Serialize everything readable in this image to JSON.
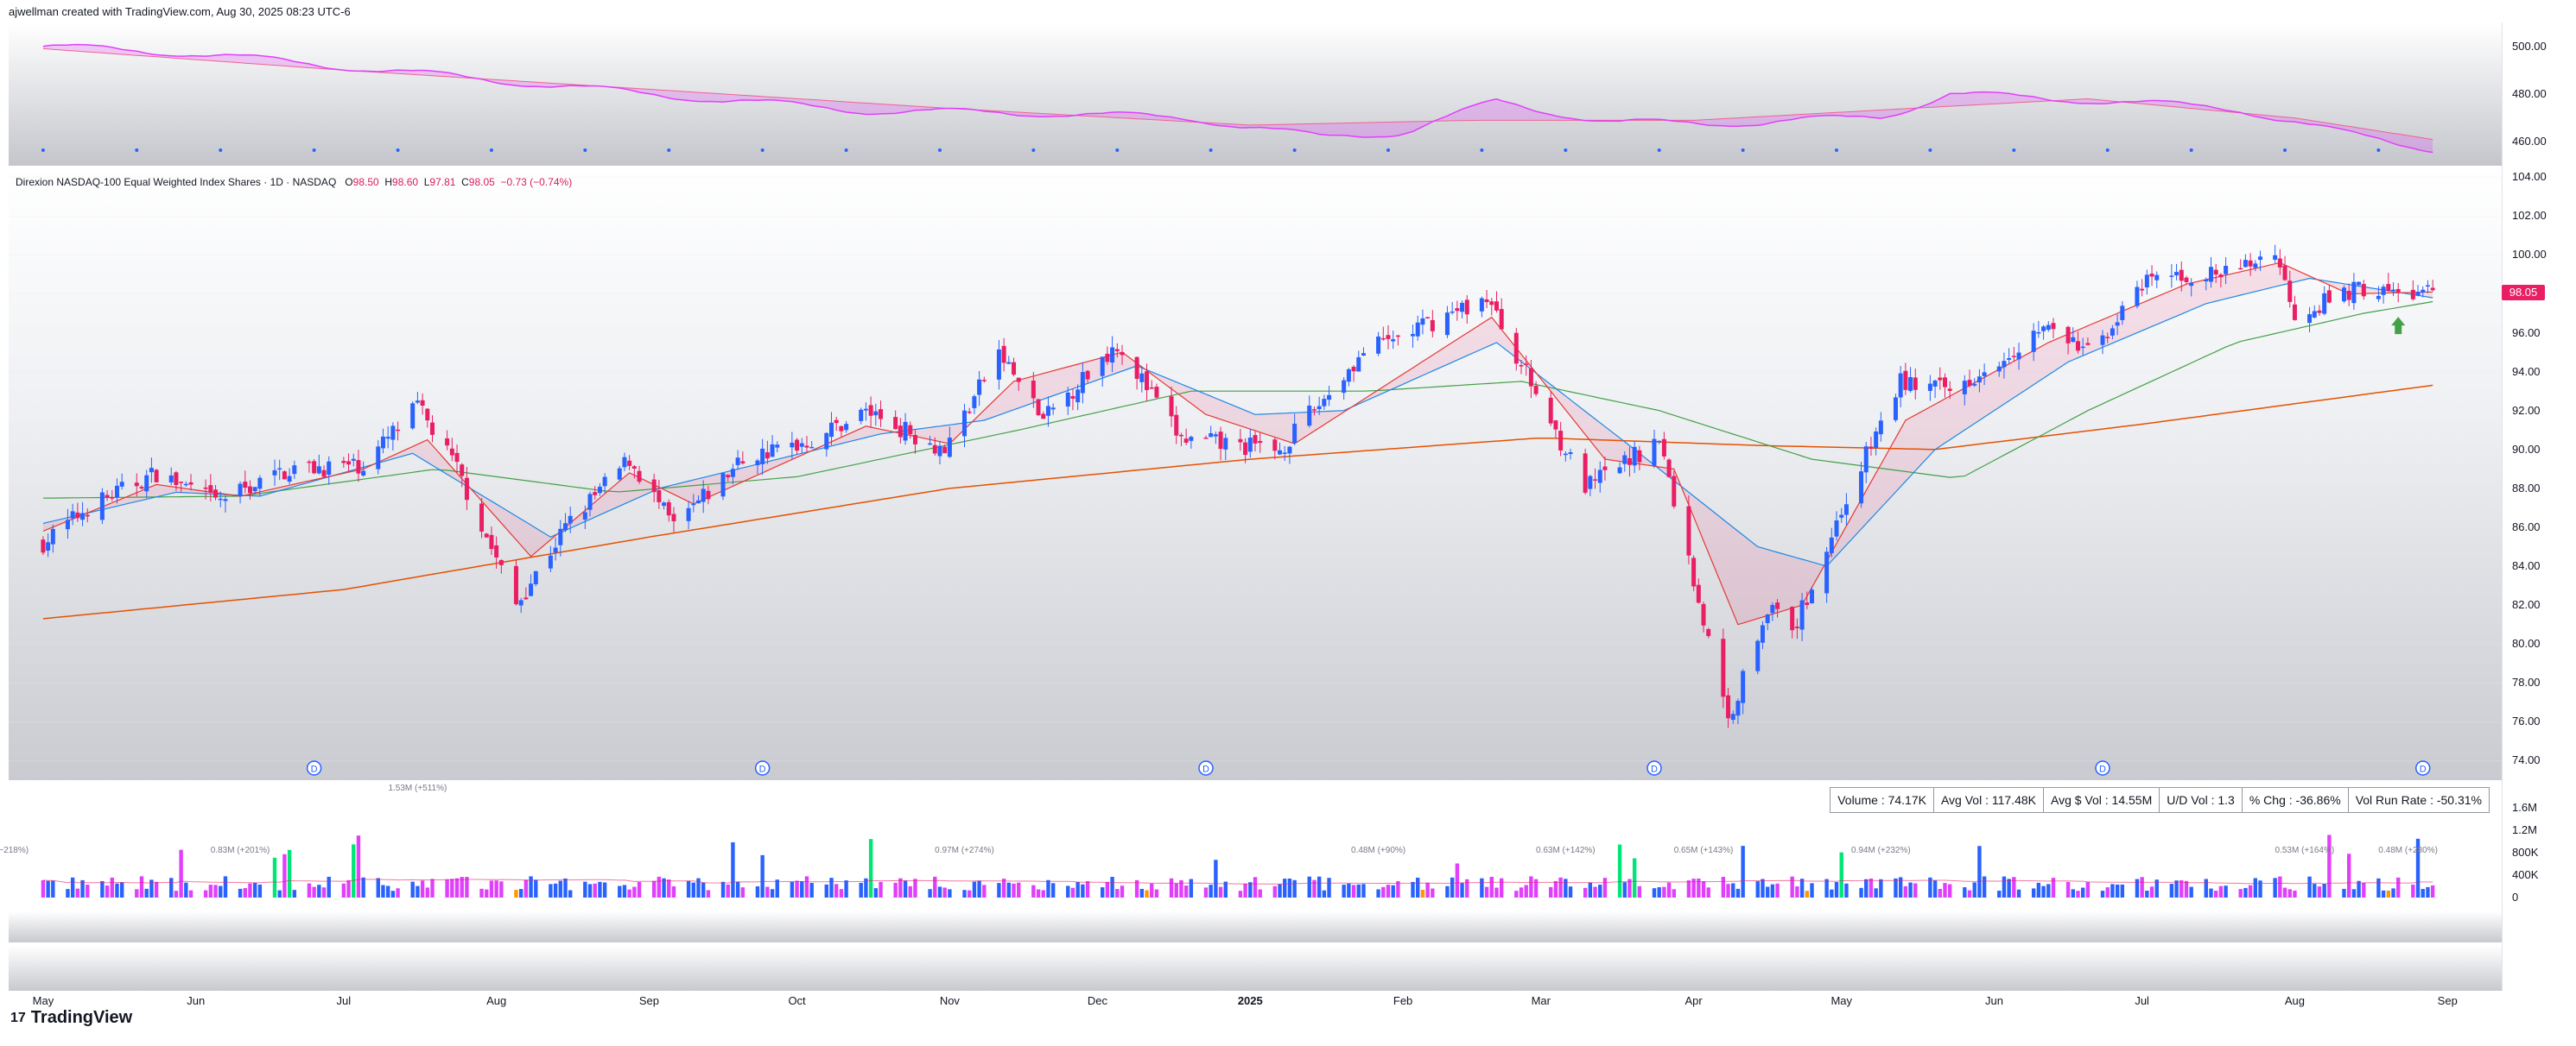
{
  "header": {
    "text": "ajwellman created with TradingView.com, Aug 30, 2025 08:23 UTC-6"
  },
  "legend": {
    "name": "Direxion NASDAQ-100 Equal Weighted Index Shares · 1D · NASDAQ",
    "o_label": "O",
    "o": "98.50",
    "h_label": "H",
    "h": "98.60",
    "l_label": "L",
    "l": "97.81",
    "c_label": "C",
    "c": "98.05",
    "change": "−0.73 (−0.74%)"
  },
  "price_tag": "98.05",
  "stats": [
    "Volume : 74.17K",
    "Avg Vol : 117.48K",
    "Avg $ Vol : 14.55M",
    "U/D Vol : 1.3",
    "% Chg : -36.86%",
    "Vol Run Rate : -50.31%"
  ],
  "logo": {
    "text": "TradingView",
    "mark": "17"
  },
  "colors": {
    "up": "#2962ff",
    "down": "#e91e63",
    "ema_fast": "#e53935",
    "ema_mid": "#1e88e5",
    "sma50": "#43a047",
    "sma200": "#e65100",
    "top_line": "#e040fb",
    "vol_up": "#2962ff",
    "vol_down": "#e040fb",
    "vol_hi": "#00e676",
    "vol_low": "#ff9800"
  },
  "chart_data": {
    "type": "line",
    "title": "",
    "x_ticks": [
      "May",
      "Jun",
      "Jul",
      "Aug",
      "Sep",
      "Oct",
      "Nov",
      "Dec",
      "2025",
      "Feb",
      "Mar",
      "Apr",
      "May",
      "Jun",
      "Jul",
      "Aug",
      "Sep"
    ],
    "price_ticks": [
      "104.00",
      "102.00",
      "100.00",
      "98.00",
      "96.00",
      "94.00",
      "92.00",
      "90.00",
      "88.00",
      "86.00",
      "84.00",
      "82.00",
      "80.00",
      "78.00",
      "76.00",
      "74.00"
    ],
    "ylim": [
      73,
      104.5
    ],
    "top_ticks": [
      "500.00",
      "480.00",
      "460.00"
    ],
    "top_ylim": [
      450,
      510
    ],
    "volume_ticks": [
      "1.6M",
      "1.2M",
      "800K",
      "400K",
      "0"
    ],
    "volume_ylim": [
      0,
      1600000
    ],
    "volume_annotations": [
      "−218%)",
      "0.83M (+201%)",
      "1.53M (+511%)",
      "0.97M (+274%)",
      "0.48M (+90%)",
      "0.63M (+142%)",
      "0.65M (+143%)",
      "0.94M (+232%)",
      "0.53M (+164%)",
      "0.48M (+280%)"
    ],
    "price_anchors": [
      {
        "d": "2024-05-01",
        "v": 85.2
      },
      {
        "d": "2024-05-10",
        "v": 87.0
      },
      {
        "d": "2024-05-24",
        "v": 88.8
      },
      {
        "d": "2024-06-05",
        "v": 87.3
      },
      {
        "d": "2024-06-20",
        "v": 89.0
      },
      {
        "d": "2024-07-05",
        "v": 89.2
      },
      {
        "d": "2024-07-16",
        "v": 92.2
      },
      {
        "d": "2024-07-24",
        "v": 89.0
      },
      {
        "d": "2024-08-05",
        "v": 82.0
      },
      {
        "d": "2024-08-15",
        "v": 86.0
      },
      {
        "d": "2024-08-28",
        "v": 89.5
      },
      {
        "d": "2024-09-06",
        "v": 86.0
      },
      {
        "d": "2024-09-20",
        "v": 89.5
      },
      {
        "d": "2024-10-04",
        "v": 90.5
      },
      {
        "d": "2024-10-15",
        "v": 92.0
      },
      {
        "d": "2024-10-31",
        "v": 90.0
      },
      {
        "d": "2024-11-11",
        "v": 95.0
      },
      {
        "d": "2024-11-20",
        "v": 91.5
      },
      {
        "d": "2024-12-05",
        "v": 95.5
      },
      {
        "d": "2024-12-18",
        "v": 90.5
      },
      {
        "d": "2025-01-07",
        "v": 90.0
      },
      {
        "d": "2025-01-24",
        "v": 95.0
      },
      {
        "d": "2025-02-18",
        "v": 97.8
      },
      {
        "d": "2025-03-10",
        "v": 88.0
      },
      {
        "d": "2025-03-25",
        "v": 90.5
      },
      {
        "d": "2025-04-08",
        "v": 76.0
      },
      {
        "d": "2025-04-16",
        "v": 82.0
      },
      {
        "d": "2025-04-21",
        "v": 80.5
      },
      {
        "d": "2025-05-02",
        "v": 87.5
      },
      {
        "d": "2025-05-13",
        "v": 93.5
      },
      {
        "d": "2025-05-23",
        "v": 93.0
      },
      {
        "d": "2025-06-11",
        "v": 96.3
      },
      {
        "d": "2025-06-20",
        "v": 95.0
      },
      {
        "d": "2025-07-03",
        "v": 98.8
      },
      {
        "d": "2025-07-18",
        "v": 99.0
      },
      {
        "d": "2025-07-28",
        "v": 100.2
      },
      {
        "d": "2025-08-01",
        "v": 97.0
      },
      {
        "d": "2025-08-14",
        "v": 98.3
      },
      {
        "d": "2025-08-22",
        "v": 98.0
      },
      {
        "d": "2025-08-29",
        "v": 98.05
      }
    ],
    "ema_fast_anchors": [
      {
        "d": "2024-05-01",
        "v": 85.8
      },
      {
        "d": "2024-05-24",
        "v": 88.2
      },
      {
        "d": "2024-06-10",
        "v": 87.6
      },
      {
        "d": "2024-07-05",
        "v": 89.0
      },
      {
        "d": "2024-07-18",
        "v": 90.5
      },
      {
        "d": "2024-08-08",
        "v": 84.5
      },
      {
        "d": "2024-08-28",
        "v": 88.8
      },
      {
        "d": "2024-09-10",
        "v": 87.2
      },
      {
        "d": "2024-10-15",
        "v": 91.2
      },
      {
        "d": "2024-11-01",
        "v": 90.3
      },
      {
        "d": "2024-11-14",
        "v": 93.5
      },
      {
        "d": "2024-12-06",
        "v": 95.0
      },
      {
        "d": "2024-12-23",
        "v": 91.8
      },
      {
        "d": "2025-01-10",
        "v": 90.3
      },
      {
        "d": "2025-02-19",
        "v": 96.8
      },
      {
        "d": "2025-03-14",
        "v": 89.5
      },
      {
        "d": "2025-03-28",
        "v": 89.0
      },
      {
        "d": "2025-04-10",
        "v": 81.0
      },
      {
        "d": "2025-04-23",
        "v": 82.0
      },
      {
        "d": "2025-05-14",
        "v": 91.5
      },
      {
        "d": "2025-06-12",
        "v": 95.5
      },
      {
        "d": "2025-07-10",
        "v": 98.5
      },
      {
        "d": "2025-07-29",
        "v": 99.6
      },
      {
        "d": "2025-08-12",
        "v": 98.0
      },
      {
        "d": "2025-08-29",
        "v": 98.1
      }
    ],
    "ema_mid_anchors": [
      {
        "d": "2024-05-01",
        "v": 86.2
      },
      {
        "d": "2024-05-28",
        "v": 87.8
      },
      {
        "d": "2024-06-14",
        "v": 87.6
      },
      {
        "d": "2024-07-15",
        "v": 89.8
      },
      {
        "d": "2024-08-12",
        "v": 85.5
      },
      {
        "d": "2024-09-03",
        "v": 88.0
      },
      {
        "d": "2024-10-18",
        "v": 90.8
      },
      {
        "d": "2024-11-08",
        "v": 91.5
      },
      {
        "d": "2024-12-09",
        "v": 94.3
      },
      {
        "d": "2025-01-02",
        "v": 91.8
      },
      {
        "d": "2025-01-20",
        "v": 92.0
      },
      {
        "d": "2025-02-20",
        "v": 95.5
      },
      {
        "d": "2025-03-20",
        "v": 90.0
      },
      {
        "d": "2025-04-14",
        "v": 85.0
      },
      {
        "d": "2025-04-28",
        "v": 84.0
      },
      {
        "d": "2025-05-20",
        "v": 90.0
      },
      {
        "d": "2025-06-16",
        "v": 94.5
      },
      {
        "d": "2025-07-14",
        "v": 97.5
      },
      {
        "d": "2025-08-04",
        "v": 98.8
      },
      {
        "d": "2025-08-29",
        "v": 97.8
      }
    ],
    "sma50_anchors": [
      {
        "d": "2024-05-01",
        "v": 87.5
      },
      {
        "d": "2024-06-10",
        "v": 87.6
      },
      {
        "d": "2024-07-20",
        "v": 89.0
      },
      {
        "d": "2024-08-25",
        "v": 87.8
      },
      {
        "d": "2024-10-01",
        "v": 88.6
      },
      {
        "d": "2024-11-15",
        "v": 91.0
      },
      {
        "d": "2024-12-20",
        "v": 93.0
      },
      {
        "d": "2025-01-25",
        "v": 93.0
      },
      {
        "d": "2025-02-25",
        "v": 93.5
      },
      {
        "d": "2025-03-25",
        "v": 92.0
      },
      {
        "d": "2025-04-25",
        "v": 89.5
      },
      {
        "d": "2025-05-25",
        "v": 88.5
      },
      {
        "d": "2025-06-20",
        "v": 92.0
      },
      {
        "d": "2025-07-20",
        "v": 95.5
      },
      {
        "d": "2025-08-15",
        "v": 97.0
      },
      {
        "d": "2025-08-29",
        "v": 97.6
      }
    ],
    "sma200_anchors": [
      {
        "d": "2024-05-01",
        "v": 81.3
      },
      {
        "d": "2024-07-01",
        "v": 82.8
      },
      {
        "d": "2024-09-01",
        "v": 85.5
      },
      {
        "d": "2024-11-01",
        "v": 88.0
      },
      {
        "d": "2025-01-01",
        "v": 89.5
      },
      {
        "d": "2025-03-01",
        "v": 90.6
      },
      {
        "d": "2025-04-15",
        "v": 90.2
      },
      {
        "d": "2025-05-20",
        "v": 90.0
      },
      {
        "d": "2025-07-01",
        "v": 91.3
      },
      {
        "d": "2025-08-29",
        "v": 93.3
      }
    ],
    "top_anchors": [
      {
        "d": "2024-05-01",
        "v": 500
      },
      {
        "d": "2024-06-01",
        "v": 497
      },
      {
        "d": "2024-07-20",
        "v": 488
      },
      {
        "d": "2024-09-01",
        "v": 480
      },
      {
        "d": "2024-10-15",
        "v": 473
      },
      {
        "d": "2024-11-20",
        "v": 472
      },
      {
        "d": "2024-12-20",
        "v": 470
      },
      {
        "d": "2025-01-15",
        "v": 462
      },
      {
        "d": "2025-02-01",
        "v": 464
      },
      {
        "d": "2025-02-20",
        "v": 477
      },
      {
        "d": "2025-03-15",
        "v": 468
      },
      {
        "d": "2025-04-15",
        "v": 468
      },
      {
        "d": "2025-05-10",
        "v": 471
      },
      {
        "d": "2025-05-23",
        "v": 480
      },
      {
        "d": "2025-06-15",
        "v": 478
      },
      {
        "d": "2025-07-20",
        "v": 474
      },
      {
        "d": "2025-08-10",
        "v": 464
      },
      {
        "d": "2025-08-29",
        "v": 457
      }
    ],
    "top_avg_anchors": [
      {
        "d": "2024-05-01",
        "v": 499
      },
      {
        "d": "2024-07-01",
        "v": 490
      },
      {
        "d": "2024-09-01",
        "v": 482
      },
      {
        "d": "2024-11-01",
        "v": 474
      },
      {
        "d": "2025-01-01",
        "v": 467
      },
      {
        "d": "2025-02-15",
        "v": 469
      },
      {
        "d": "2025-04-01",
        "v": 469
      },
      {
        "d": "2025-05-15",
        "v": 474
      },
      {
        "d": "2025-06-20",
        "v": 478
      },
      {
        "d": "2025-08-01",
        "v": 470
      },
      {
        "d": "2025-08-29",
        "v": 461
      }
    ],
    "dividend_markers": [
      "2024-06-25",
      "2024-09-24",
      "2024-12-23",
      "2025-03-24",
      "2025-06-23",
      "2025-08-27"
    ],
    "dividend_label": "D",
    "arrow_date": "2025-08-22"
  }
}
